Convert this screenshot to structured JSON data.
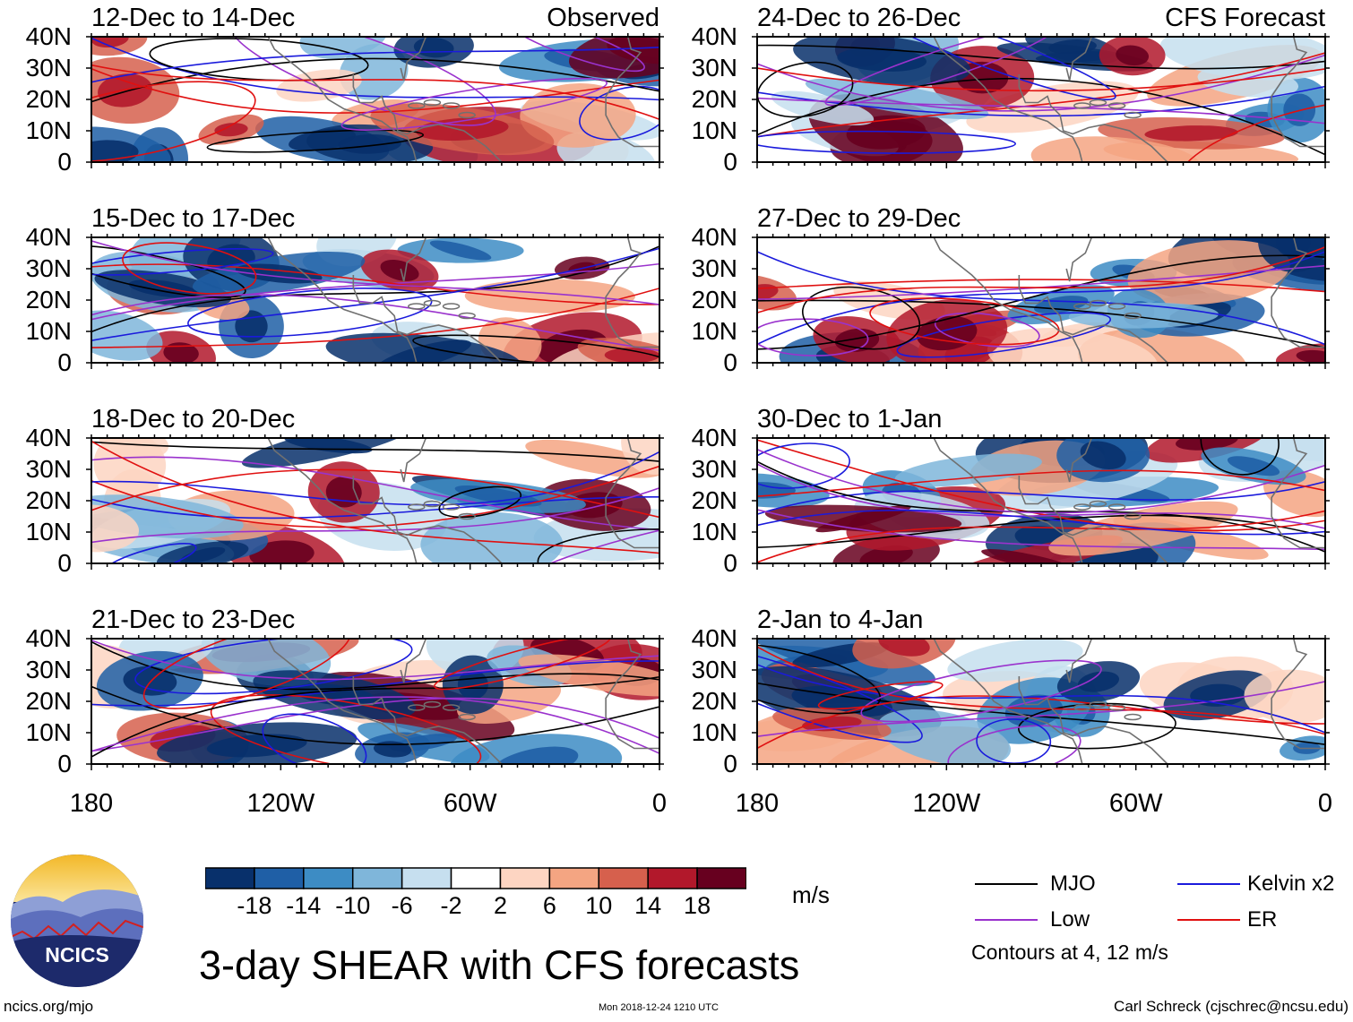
{
  "figure": {
    "title": "3-day SHEAR with CFS forecasts",
    "site": "ncics.org/mjo",
    "timestamp": "Mon 2018-12-24 1210 UTC",
    "author": "Carl Schreck (cjschrec@ncsu.edu)",
    "logo_text": "NCICS"
  },
  "columns": {
    "left": "Observed",
    "right": "CFS Forecast"
  },
  "axes": {
    "lat_ticks": [
      "40N",
      "30N",
      "20N",
      "10N",
      "0"
    ],
    "lon_ticks": [
      "180",
      "120W",
      "60W",
      "0"
    ],
    "lat_range": [
      0,
      40
    ],
    "lon_range": [
      -180,
      0
    ]
  },
  "panels": [
    {
      "period": "12-Dec to 14-Dec",
      "type": "Observed"
    },
    {
      "period": "15-Dec to 17-Dec",
      "type": "Observed"
    },
    {
      "period": "18-Dec to 20-Dec",
      "type": "Observed"
    },
    {
      "period": "21-Dec to 23-Dec",
      "type": "Observed"
    },
    {
      "period": "24-Dec to 26-Dec",
      "type": "CFS Forecast"
    },
    {
      "period": "27-Dec to 29-Dec",
      "type": "CFS Forecast"
    },
    {
      "period": "30-Dec to 1-Jan",
      "type": "CFS Forecast"
    },
    {
      "period": "2-Jan to 4-Jan",
      "type": "CFS Forecast"
    }
  ],
  "colorbar": {
    "unit": "m/s",
    "ticks": [
      "-18",
      "-14",
      "-10",
      "-6",
      "-2",
      "2",
      "6",
      "10",
      "14",
      "18"
    ],
    "colors": [
      "#08306b",
      "#1f5fa6",
      "#3d8cc4",
      "#7fb6da",
      "#c6dfef",
      "#ffffff",
      "#fdd5c2",
      "#f4a582",
      "#d6604d",
      "#b2182b",
      "#67001f"
    ]
  },
  "legend": {
    "items": [
      {
        "label": "MJO",
        "color": "#000000"
      },
      {
        "label": "Kelvin x2",
        "color": "#1a1adc"
      },
      {
        "label": "Low",
        "color": "#9a32cd"
      },
      {
        "label": "ER",
        "color": "#e01010"
      }
    ],
    "note": "Contours at 4, 12 m/s"
  }
}
